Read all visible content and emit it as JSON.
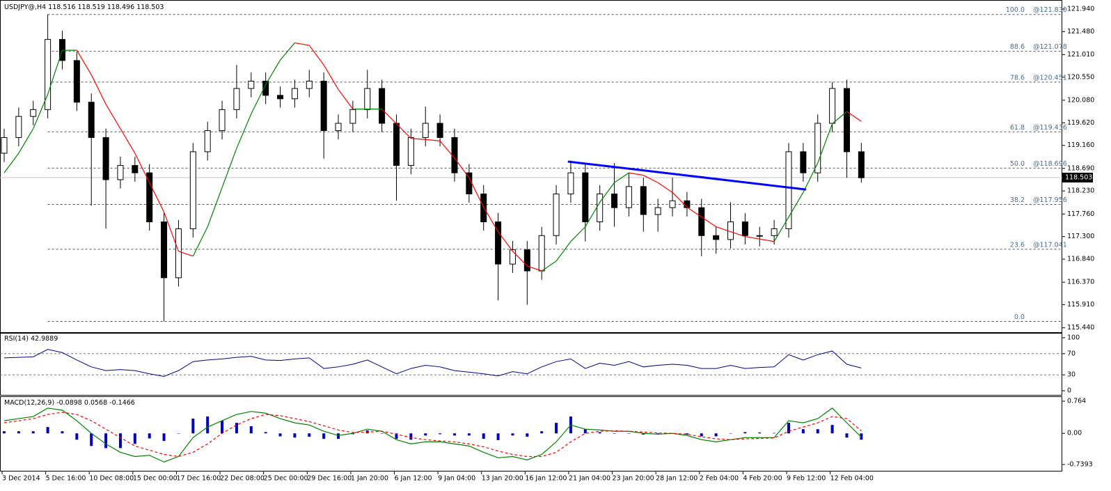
{
  "chart_data": [
    {
      "type": "candlestick",
      "symbol": "USDJPY@,H4",
      "header_values": [
        118.516,
        118.519,
        118.496,
        118.503
      ],
      "categories": [
        "3 Dec 2014",
        null,
        null,
        "5 Dec 16:00",
        null,
        null,
        "10 Dec 08:00",
        null,
        null,
        "15 Dec 00:00",
        null,
        null,
        "17 Dec 16:00",
        null,
        null,
        "22 Dec 08:00",
        null,
        null,
        "25 Dec 00:00",
        null,
        null,
        "29 Dec 16:00",
        null,
        null,
        "1 Jan 20:00",
        null,
        null,
        "6 Jan 12:00",
        null,
        null,
        "9 Jan 04:00",
        null,
        null,
        "13 Jan 20:00",
        null,
        null,
        "16 Jan 12:00",
        null,
        null,
        "21 Jan 04:00",
        null,
        null,
        "23 Jan 20:00",
        null,
        null,
        "28 Jan 12:00",
        null,
        null,
        "2 Feb 04:00",
        null,
        null,
        "4 Feb 20:00",
        null,
        null,
        "9 Feb 12:00",
        null,
        null,
        "12 Feb 04:00",
        null,
        null
      ],
      "open": [
        119.0,
        119.32,
        119.75,
        119.89,
        121.32,
        120.89,
        120.04,
        119.32,
        118.46,
        118.75,
        118.6,
        117.6,
        116.46,
        117.46,
        119.03,
        119.46,
        119.89,
        120.32,
        120.47,
        120.18,
        120.11,
        120.32,
        120.47,
        119.46,
        119.61,
        119.89,
        120.32,
        119.61,
        118.75,
        119.32,
        119.61,
        119.32,
        118.6,
        118.17,
        117.6,
        116.74,
        117.03,
        116.6,
        117.32,
        118.17,
        118.6,
        117.6,
        118.17,
        117.89,
        118.32,
        117.75,
        117.89,
        118.03,
        117.89,
        117.32,
        117.24,
        117.6,
        117.32,
        117.32,
        117.46,
        119.03,
        118.6,
        119.61,
        120.32,
        119.03
      ],
      "high": [
        119.5,
        119.93,
        120.07,
        121.83,
        121.5,
        121.07,
        120.22,
        119.5,
        118.93,
        118.93,
        118.78,
        117.78,
        117.64,
        119.21,
        119.64,
        120.07,
        120.8,
        120.65,
        120.65,
        120.36,
        120.5,
        120.7,
        120.65,
        119.79,
        120.07,
        120.7,
        120.5,
        119.79,
        119.5,
        119.95,
        119.79,
        119.5,
        118.78,
        118.35,
        117.78,
        117.21,
        117.21,
        117.5,
        118.35,
        118.85,
        118.78,
        118.35,
        118.8,
        118.6,
        118.5,
        118.07,
        118.5,
        118.21,
        118.07,
        117.5,
        118.0,
        117.78,
        117.5,
        117.64,
        119.21,
        119.21,
        119.79,
        120.45,
        120.5,
        119.21
      ],
      "low": [
        118.82,
        119.14,
        119.57,
        119.71,
        120.71,
        119.86,
        117.93,
        117.46,
        118.28,
        118.42,
        117.42,
        115.57,
        116.28,
        117.28,
        118.85,
        119.28,
        119.71,
        120.14,
        120.0,
        119.93,
        119.93,
        120.14,
        118.89,
        119.28,
        119.43,
        119.71,
        119.43,
        118.03,
        118.57,
        119.14,
        119.14,
        118.42,
        117.99,
        117.42,
        116.0,
        116.56,
        115.91,
        116.42,
        117.14,
        117.99,
        117.2,
        117.42,
        117.5,
        117.71,
        117.4,
        117.4,
        117.71,
        117.71,
        116.9,
        116.95,
        117.06,
        117.14,
        117.1,
        117.14,
        117.28,
        118.42,
        118.42,
        119.43,
        118.5,
        118.4
      ],
      "close": [
        119.32,
        119.75,
        119.89,
        121.32,
        120.89,
        120.04,
        119.32,
        118.46,
        118.75,
        118.6,
        117.6,
        116.46,
        117.46,
        119.03,
        119.46,
        119.89,
        120.32,
        120.47,
        120.18,
        120.11,
        120.32,
        120.47,
        119.46,
        119.61,
        119.89,
        120.32,
        119.61,
        118.75,
        119.32,
        119.61,
        119.32,
        118.6,
        118.17,
        117.6,
        116.74,
        117.03,
        116.6,
        117.32,
        118.17,
        118.6,
        117.6,
        118.17,
        117.89,
        118.32,
        117.75,
        117.89,
        118.03,
        117.89,
        117.32,
        117.24,
        117.6,
        117.32,
        117.32,
        117.46,
        119.03,
        118.6,
        119.61,
        120.32,
        119.03,
        118.5
      ],
      "up_color": "#ffffff",
      "down_color": "#000000",
      "ma": {
        "values": [
          118.6,
          119.0,
          119.5,
          120.2,
          121.1,
          121.1,
          120.6,
          120.0,
          119.5,
          119.0,
          118.4,
          117.8,
          117.0,
          116.9,
          117.5,
          118.3,
          119.1,
          119.8,
          120.4,
          120.9,
          121.25,
          121.2,
          120.8,
          120.3,
          119.9,
          119.9,
          119.9,
          119.6,
          119.3,
          119.28,
          119.25,
          118.9,
          118.5,
          117.9,
          117.4,
          117.0,
          116.7,
          116.6,
          116.8,
          117.2,
          117.5,
          118.0,
          118.4,
          118.6,
          118.55,
          118.4,
          118.2,
          117.9,
          117.7,
          117.5,
          117.4,
          117.3,
          117.25,
          117.2,
          117.7,
          118.2,
          118.8,
          119.6,
          119.85,
          119.65
        ],
        "up_color": "#008000",
        "down_color": "#ff0000"
      },
      "fib": [
        {
          "level": "100.0",
          "price": 121.83,
          "label": "@121.830"
        },
        {
          "level": "88.6",
          "price": 121.078,
          "label": "@121.078"
        },
        {
          "level": "78.6",
          "price": 120.451,
          "label": "@120.451"
        },
        {
          "level": "61.8",
          "price": 119.436,
          "label": "@119.436"
        },
        {
          "level": "50.0",
          "price": 118.696,
          "label": "@118.696"
        },
        {
          "level": "38.2",
          "price": 117.956,
          "label": "@117.956"
        },
        {
          "level": "23.6",
          "price": 117.041,
          "label": "@117.041"
        },
        {
          "level": "0.0",
          "price": 115.57
        }
      ],
      "trendline": {
        "x": [
          38.8,
          55.2
        ],
        "y": [
          118.83,
          118.26
        ],
        "color": "#0000ff"
      },
      "last_price": 118.503,
      "ylim": [
        115.35,
        122.11
      ],
      "yticks": [
        {
          "value": 121.94,
          "label": "121.940"
        },
        {
          "value": 121.48,
          "label": "121.480"
        },
        {
          "value": 121.01,
          "label": "121.010"
        },
        {
          "value": 120.55,
          "label": "120.550"
        },
        {
          "value": 120.08,
          "label": "120.080"
        },
        {
          "value": 119.62,
          "label": "119.620"
        },
        {
          "value": 119.16,
          "label": "119.160"
        },
        {
          "value": 118.69,
          "label": "118.690"
        },
        {
          "value": 118.23,
          "label": "118.230"
        },
        {
          "value": 117.76,
          "label": "117.760"
        },
        {
          "value": 117.3,
          "label": "117.300"
        },
        {
          "value": 116.84,
          "label": "116.840"
        },
        {
          "value": 116.37,
          "label": "116.370"
        },
        {
          "value": 115.91,
          "label": "115.910"
        },
        {
          "value": 115.44,
          "label": "115.440"
        }
      ]
    },
    {
      "type": "line",
      "name": "RSI(14)",
      "value": 42.9889,
      "color": "#000080",
      "values": [
        62,
        63,
        64,
        78,
        72,
        58,
        45,
        38,
        40,
        38,
        32,
        27,
        38,
        55,
        58,
        60,
        63,
        65,
        58,
        57,
        60,
        62,
        42,
        45,
        50,
        58,
        45,
        32,
        42,
        48,
        45,
        38,
        35,
        32,
        28,
        36,
        32,
        45,
        55,
        60,
        42,
        52,
        48,
        55,
        45,
        48,
        50,
        48,
        42,
        42,
        48,
        42,
        44,
        45,
        68,
        58,
        68,
        75,
        50,
        43
      ],
      "levels": [
        70,
        30
      ],
      "ylim": [
        -7.8,
        107.8
      ],
      "yticks": [
        100,
        70,
        30,
        0
      ]
    },
    {
      "type": "bar",
      "name": "MACD(12,26,9)",
      "header_values": [
        -0.0898,
        0.0568,
        -0.1466
      ],
      "color": "#0000c0",
      "values": [
        0.05,
        0.05,
        0.05,
        0.15,
        0.05,
        -0.15,
        -0.3,
        -0.35,
        -0.35,
        -0.25,
        -0.12,
        -0.18,
        0.0,
        0.35,
        0.4,
        0.3,
        0.25,
        0.17,
        0.03,
        -0.07,
        -0.1,
        -0.08,
        -0.13,
        -0.13,
        -0.02,
        0.07,
        0.0,
        -0.13,
        -0.15,
        -0.05,
        -0.02,
        -0.05,
        -0.05,
        -0.13,
        -0.16,
        -0.05,
        -0.08,
        0.05,
        0.25,
        0.4,
        0.1,
        0.03,
        -0.01,
        0.0,
        -0.03,
        -0.03,
        0.0,
        -0.03,
        -0.07,
        -0.07,
        0.0,
        0.03,
        0.02,
        0.01,
        0.25,
        0.1,
        0.1,
        0.2,
        -0.1,
        -0.15
      ],
      "series": [
        {
          "color": "#008000",
          "style": "solid",
          "values": [
            0.3,
            0.35,
            0.4,
            0.6,
            0.55,
            0.3,
            0.0,
            -0.25,
            -0.45,
            -0.55,
            -0.52,
            -0.68,
            -0.55,
            -0.1,
            0.15,
            0.3,
            0.45,
            0.52,
            0.48,
            0.35,
            0.25,
            0.2,
            0.05,
            -0.05,
            0.0,
            0.1,
            0.05,
            -0.15,
            -0.25,
            -0.2,
            -0.2,
            -0.25,
            -0.3,
            -0.45,
            -0.58,
            -0.55,
            -0.63,
            -0.5,
            -0.2,
            0.2,
            0.1,
            0.08,
            0.05,
            0.05,
            0.0,
            -0.02,
            0.0,
            -0.05,
            -0.15,
            -0.2,
            -0.15,
            -0.1,
            -0.1,
            -0.1,
            0.3,
            0.25,
            0.35,
            0.6,
            0.25,
            -0.09
          ]
        },
        {
          "color": "#ff0000",
          "style": "dashed",
          "values": [
            0.25,
            0.3,
            0.35,
            0.45,
            0.5,
            0.45,
            0.3,
            0.1,
            -0.1,
            -0.3,
            -0.4,
            -0.5,
            -0.55,
            -0.45,
            -0.25,
            0.0,
            0.2,
            0.35,
            0.45,
            0.42,
            0.35,
            0.28,
            0.18,
            0.08,
            0.02,
            0.03,
            0.05,
            -0.02,
            -0.1,
            -0.15,
            -0.18,
            -0.2,
            -0.25,
            -0.32,
            -0.42,
            -0.5,
            -0.55,
            -0.55,
            -0.45,
            -0.2,
            0.0,
            0.05,
            0.06,
            0.05,
            0.03,
            0.01,
            0.0,
            -0.02,
            -0.08,
            -0.13,
            -0.15,
            -0.13,
            -0.12,
            -0.11,
            0.05,
            0.15,
            0.25,
            0.4,
            0.35,
            0.06
          ]
        }
      ],
      "ylim": [
        -0.889,
        0.864
      ],
      "yticks": [
        0.764,
        {
          "value": 0,
          "label": "0.00"
        },
        -0.7393
      ]
    }
  ]
}
